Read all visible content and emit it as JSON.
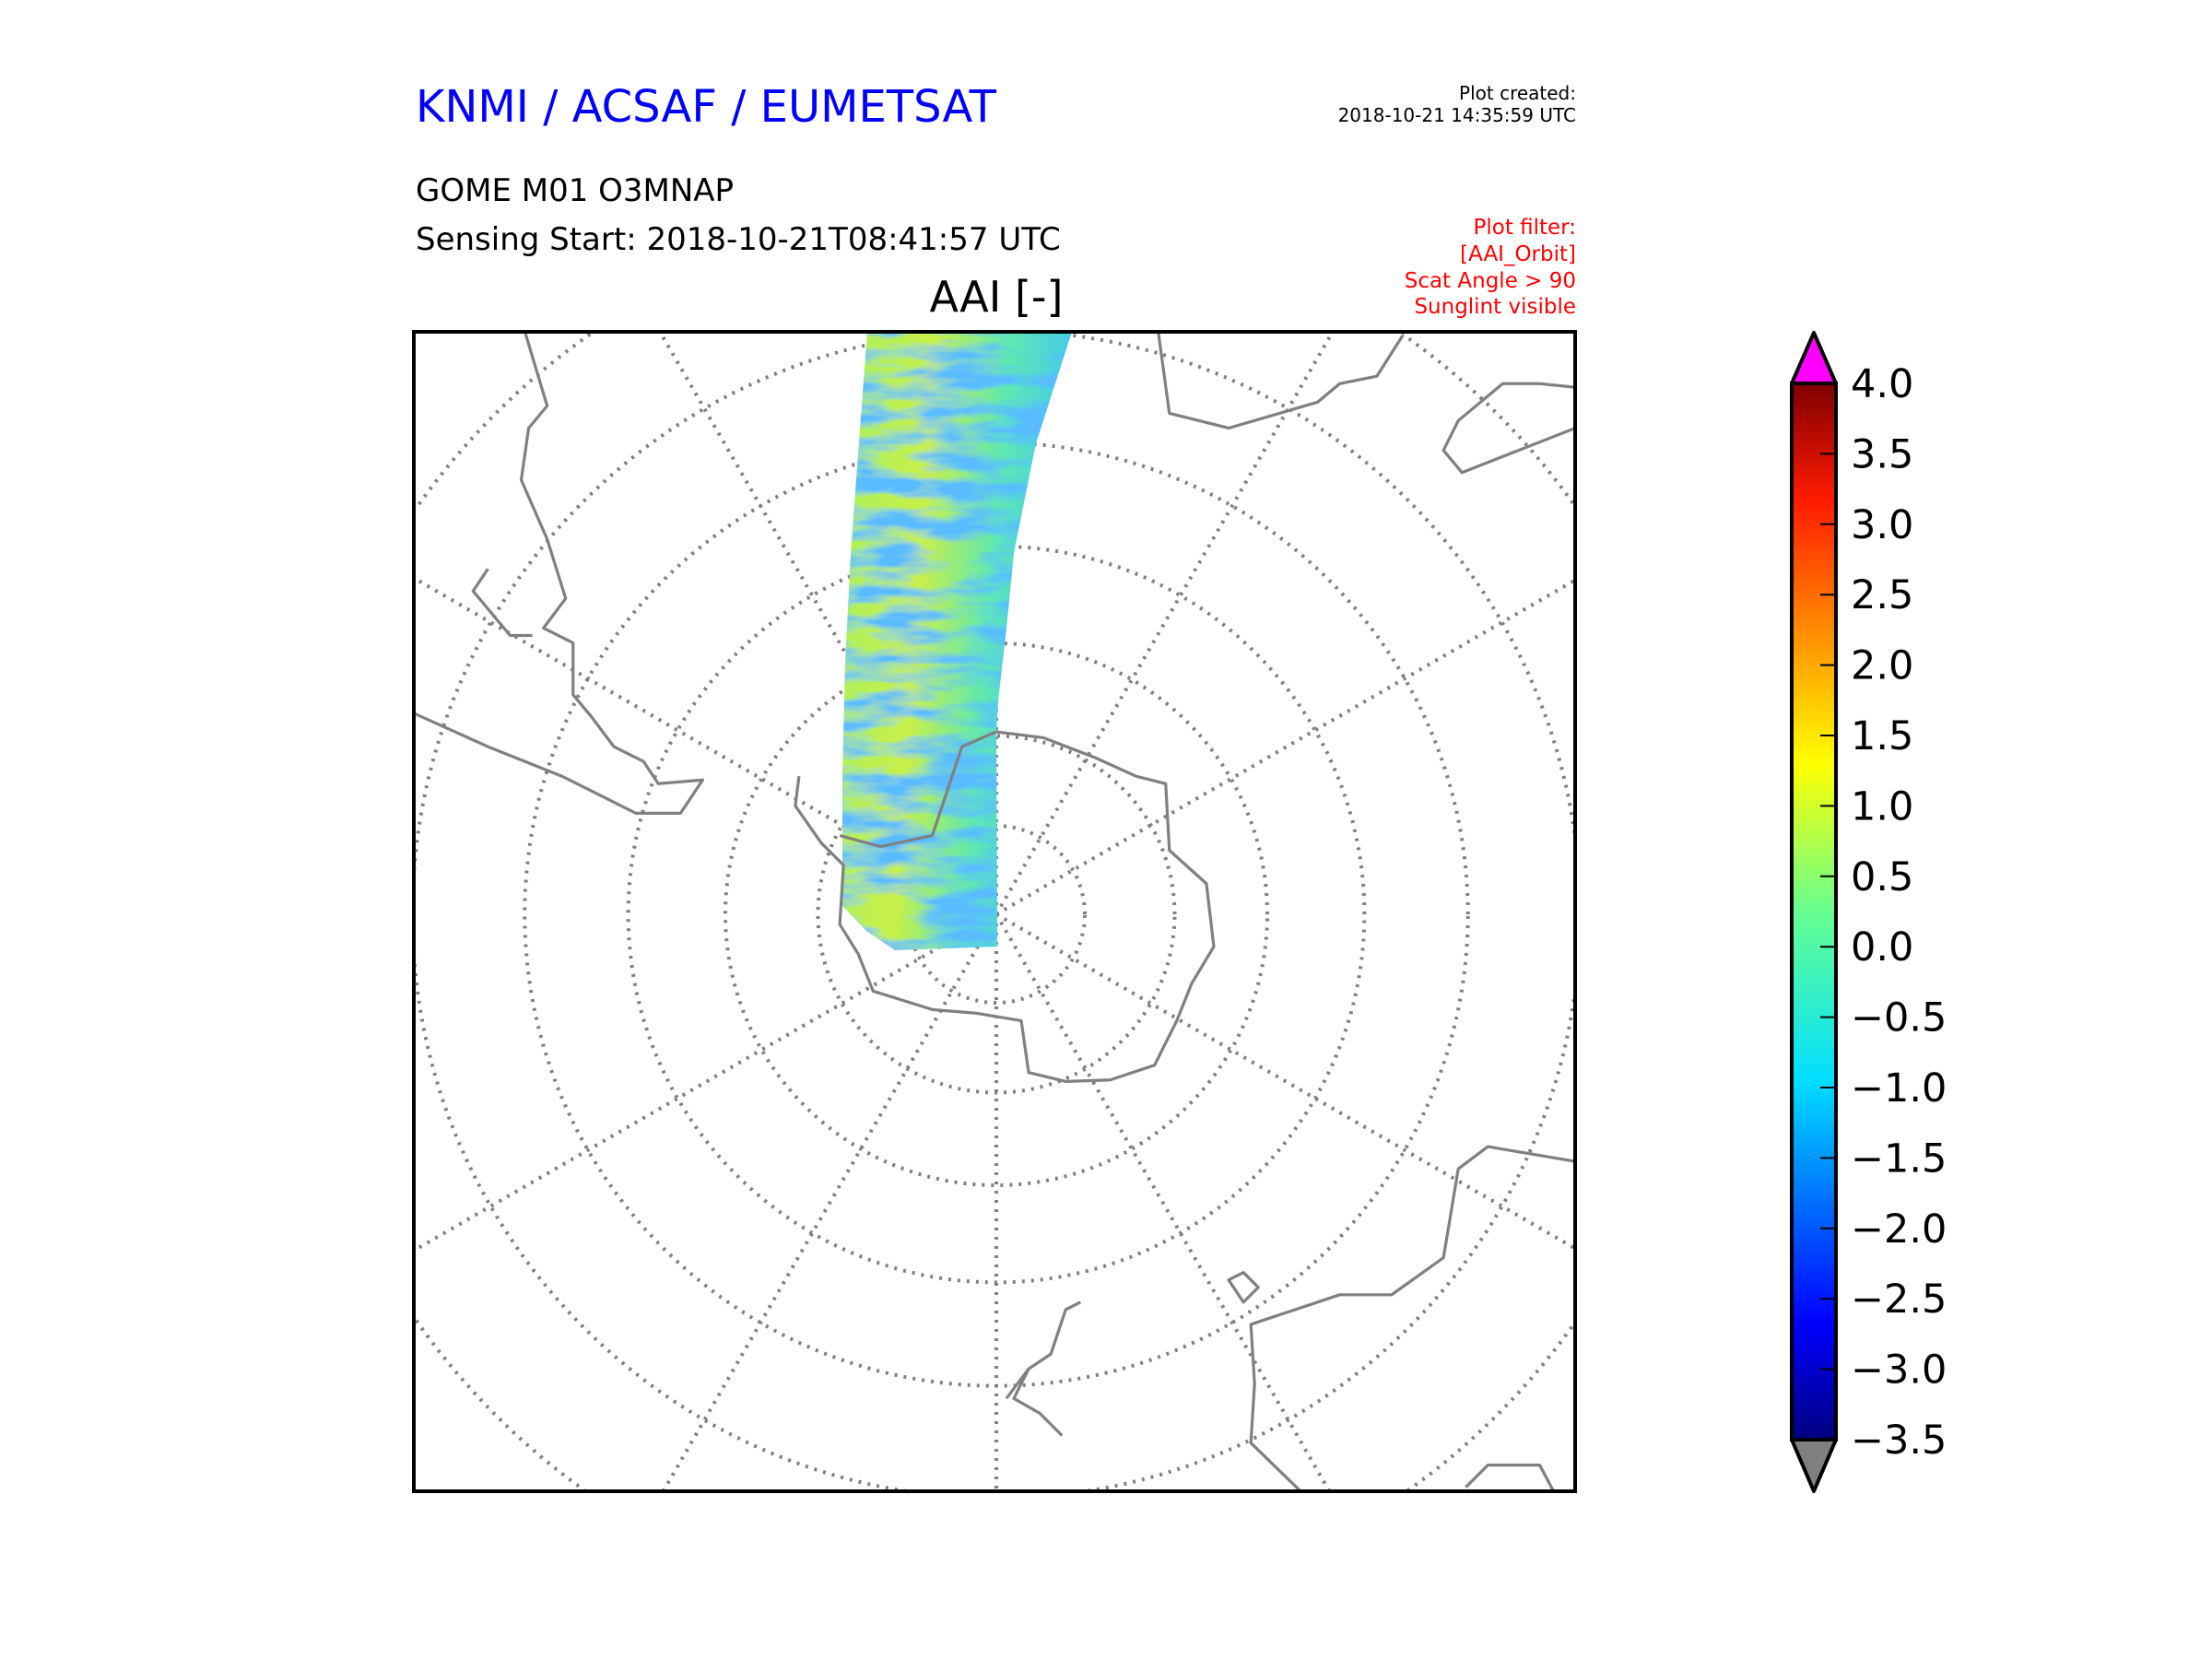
{
  "header": {
    "org_title": "KNMI / ACSAF / EUMETSAT",
    "product": "GOME M01 O3MNAP",
    "sensing_start": "Sensing Start: 2018-10-21T08:41:57 UTC",
    "plot_created_label": "Plot created:",
    "plot_created_value": "2018-10-21 14:35:59 UTC",
    "filter_lines": [
      "Plot filter:",
      "[AAI_Orbit]",
      "Scat Angle > 90",
      "Sunglint visible"
    ]
  },
  "colors": {
    "title": "#0000ff",
    "filter": "#ff0000",
    "coast": "#808080",
    "over": "#ff00ff",
    "under": "#808080"
  },
  "chart_data": {
    "type": "heatmap",
    "title": "AAI [-]",
    "projection": "south-polar-stereographic",
    "colormap": "jet",
    "colorbar": {
      "vmin": -3.5,
      "vmax": 4.0,
      "extend": "both",
      "ticks": [
        4.0,
        3.5,
        3.0,
        2.5,
        2.0,
        1.5,
        1.0,
        0.5,
        0.0,
        -0.5,
        -1.0,
        -1.5,
        -2.0,
        -2.5,
        -3.0,
        -3.5
      ],
      "tick_labels": [
        "4.0",
        "3.5",
        "3.0",
        "2.5",
        "2.0",
        "1.5",
        "1.0",
        "0.5",
        "0.0",
        "−0.5",
        "−1.0",
        "−1.5",
        "−2.0",
        "−2.5",
        "−3.0",
        "−3.5"
      ]
    },
    "latitude_circles_deg": [
      -80,
      -70,
      -60,
      -50,
      -40,
      -30,
      -20,
      -10,
      0
    ],
    "meridians_deg": [
      30,
      60,
      90,
      120,
      150,
      210,
      240,
      270,
      300,
      330
    ],
    "swath_typical_range": [
      -1.5,
      1.0
    ]
  }
}
